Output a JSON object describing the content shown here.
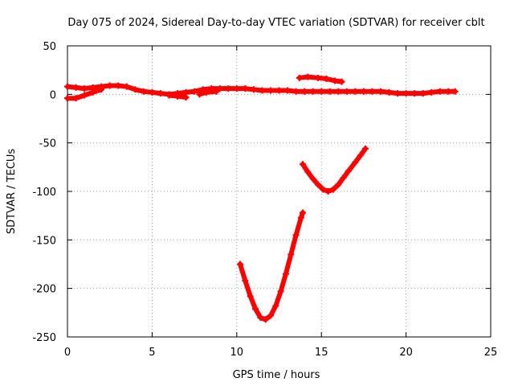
{
  "chart_data": {
    "type": "scatter",
    "title": "Day 075 of 2024, Sidereal Day-to-day VTEC variation (SDTVAR) for receiver cblt",
    "xlabel": "GPS time / hours",
    "ylabel": "SDTVAR / TECUs",
    "xlim": [
      0,
      25
    ],
    "ylim": [
      -250,
      50
    ],
    "xticks": [
      0,
      5,
      10,
      15,
      20,
      25
    ],
    "yticks": [
      -250,
      -200,
      -150,
      -100,
      -50,
      0,
      50
    ],
    "grid": true,
    "color": "#ff0000",
    "segments": [
      {
        "points": [
          [
            0.0,
            8
          ],
          [
            0.5,
            7
          ],
          [
            1.0,
            6
          ],
          [
            1.5,
            7
          ],
          [
            2.0,
            8
          ],
          [
            2.5,
            9
          ],
          [
            3.0,
            9
          ],
          [
            3.5,
            8
          ],
          [
            4.0,
            5
          ],
          [
            4.5,
            3
          ],
          [
            5.0,
            2
          ],
          [
            5.5,
            1
          ],
          [
            6.0,
            0
          ],
          [
            6.5,
            1
          ],
          [
            7.0,
            2
          ],
          [
            7.5,
            3
          ],
          [
            8.0,
            5
          ],
          [
            8.5,
            6
          ],
          [
            9.0,
            6
          ],
          [
            9.5,
            6
          ],
          [
            10.0,
            6
          ],
          [
            10.5,
            6
          ],
          [
            11.0,
            5
          ],
          [
            11.5,
            4
          ],
          [
            12.0,
            4
          ],
          [
            12.5,
            4
          ],
          [
            13.0,
            4
          ],
          [
            13.5,
            3
          ],
          [
            14.0,
            3
          ],
          [
            14.5,
            3
          ],
          [
            15.0,
            3
          ],
          [
            15.5,
            3
          ],
          [
            16.0,
            3
          ],
          [
            16.5,
            3
          ],
          [
            17.0,
            3
          ],
          [
            17.5,
            3
          ],
          [
            18.0,
            3
          ],
          [
            18.5,
            3
          ],
          [
            19.0,
            2
          ],
          [
            19.5,
            1
          ],
          [
            20.0,
            1
          ],
          [
            20.5,
            1
          ],
          [
            21.0,
            1
          ],
          [
            21.5,
            2
          ],
          [
            22.0,
            3
          ],
          [
            22.5,
            3
          ],
          [
            22.9,
            3
          ]
        ]
      },
      {
        "points": [
          [
            0.0,
            -4
          ],
          [
            0.5,
            -4
          ],
          [
            1.0,
            -1
          ],
          [
            1.5,
            2
          ],
          [
            2.0,
            5
          ]
        ]
      },
      {
        "points": [
          [
            6.0,
            -1
          ],
          [
            6.5,
            -2
          ],
          [
            7.0,
            -3
          ]
        ]
      },
      {
        "points": [
          [
            7.8,
            0
          ],
          [
            8.2,
            2
          ],
          [
            8.8,
            3
          ]
        ]
      },
      {
        "points": [
          [
            13.7,
            17
          ],
          [
            14.2,
            18
          ],
          [
            14.8,
            17
          ],
          [
            15.3,
            16
          ],
          [
            15.8,
            14
          ],
          [
            16.2,
            13
          ]
        ]
      },
      {
        "points": [
          [
            13.9,
            -72
          ],
          [
            14.2,
            -80
          ],
          [
            14.5,
            -87
          ],
          [
            14.8,
            -93
          ],
          [
            15.1,
            -98
          ],
          [
            15.4,
            -100
          ],
          [
            15.7,
            -98
          ],
          [
            16.0,
            -93
          ],
          [
            16.3,
            -86
          ],
          [
            16.6,
            -79
          ],
          [
            17.0,
            -70
          ],
          [
            17.3,
            -63
          ],
          [
            17.6,
            -56
          ]
        ]
      },
      {
        "points": [
          [
            10.2,
            -175
          ],
          [
            10.5,
            -192
          ],
          [
            10.8,
            -208
          ],
          [
            11.1,
            -221
          ],
          [
            11.4,
            -230
          ],
          [
            11.7,
            -232
          ],
          [
            12.0,
            -228
          ],
          [
            12.3,
            -218
          ],
          [
            12.6,
            -203
          ],
          [
            12.9,
            -185
          ],
          [
            13.2,
            -165
          ],
          [
            13.5,
            -145
          ],
          [
            13.8,
            -127
          ],
          [
            13.9,
            -122
          ]
        ]
      }
    ]
  }
}
